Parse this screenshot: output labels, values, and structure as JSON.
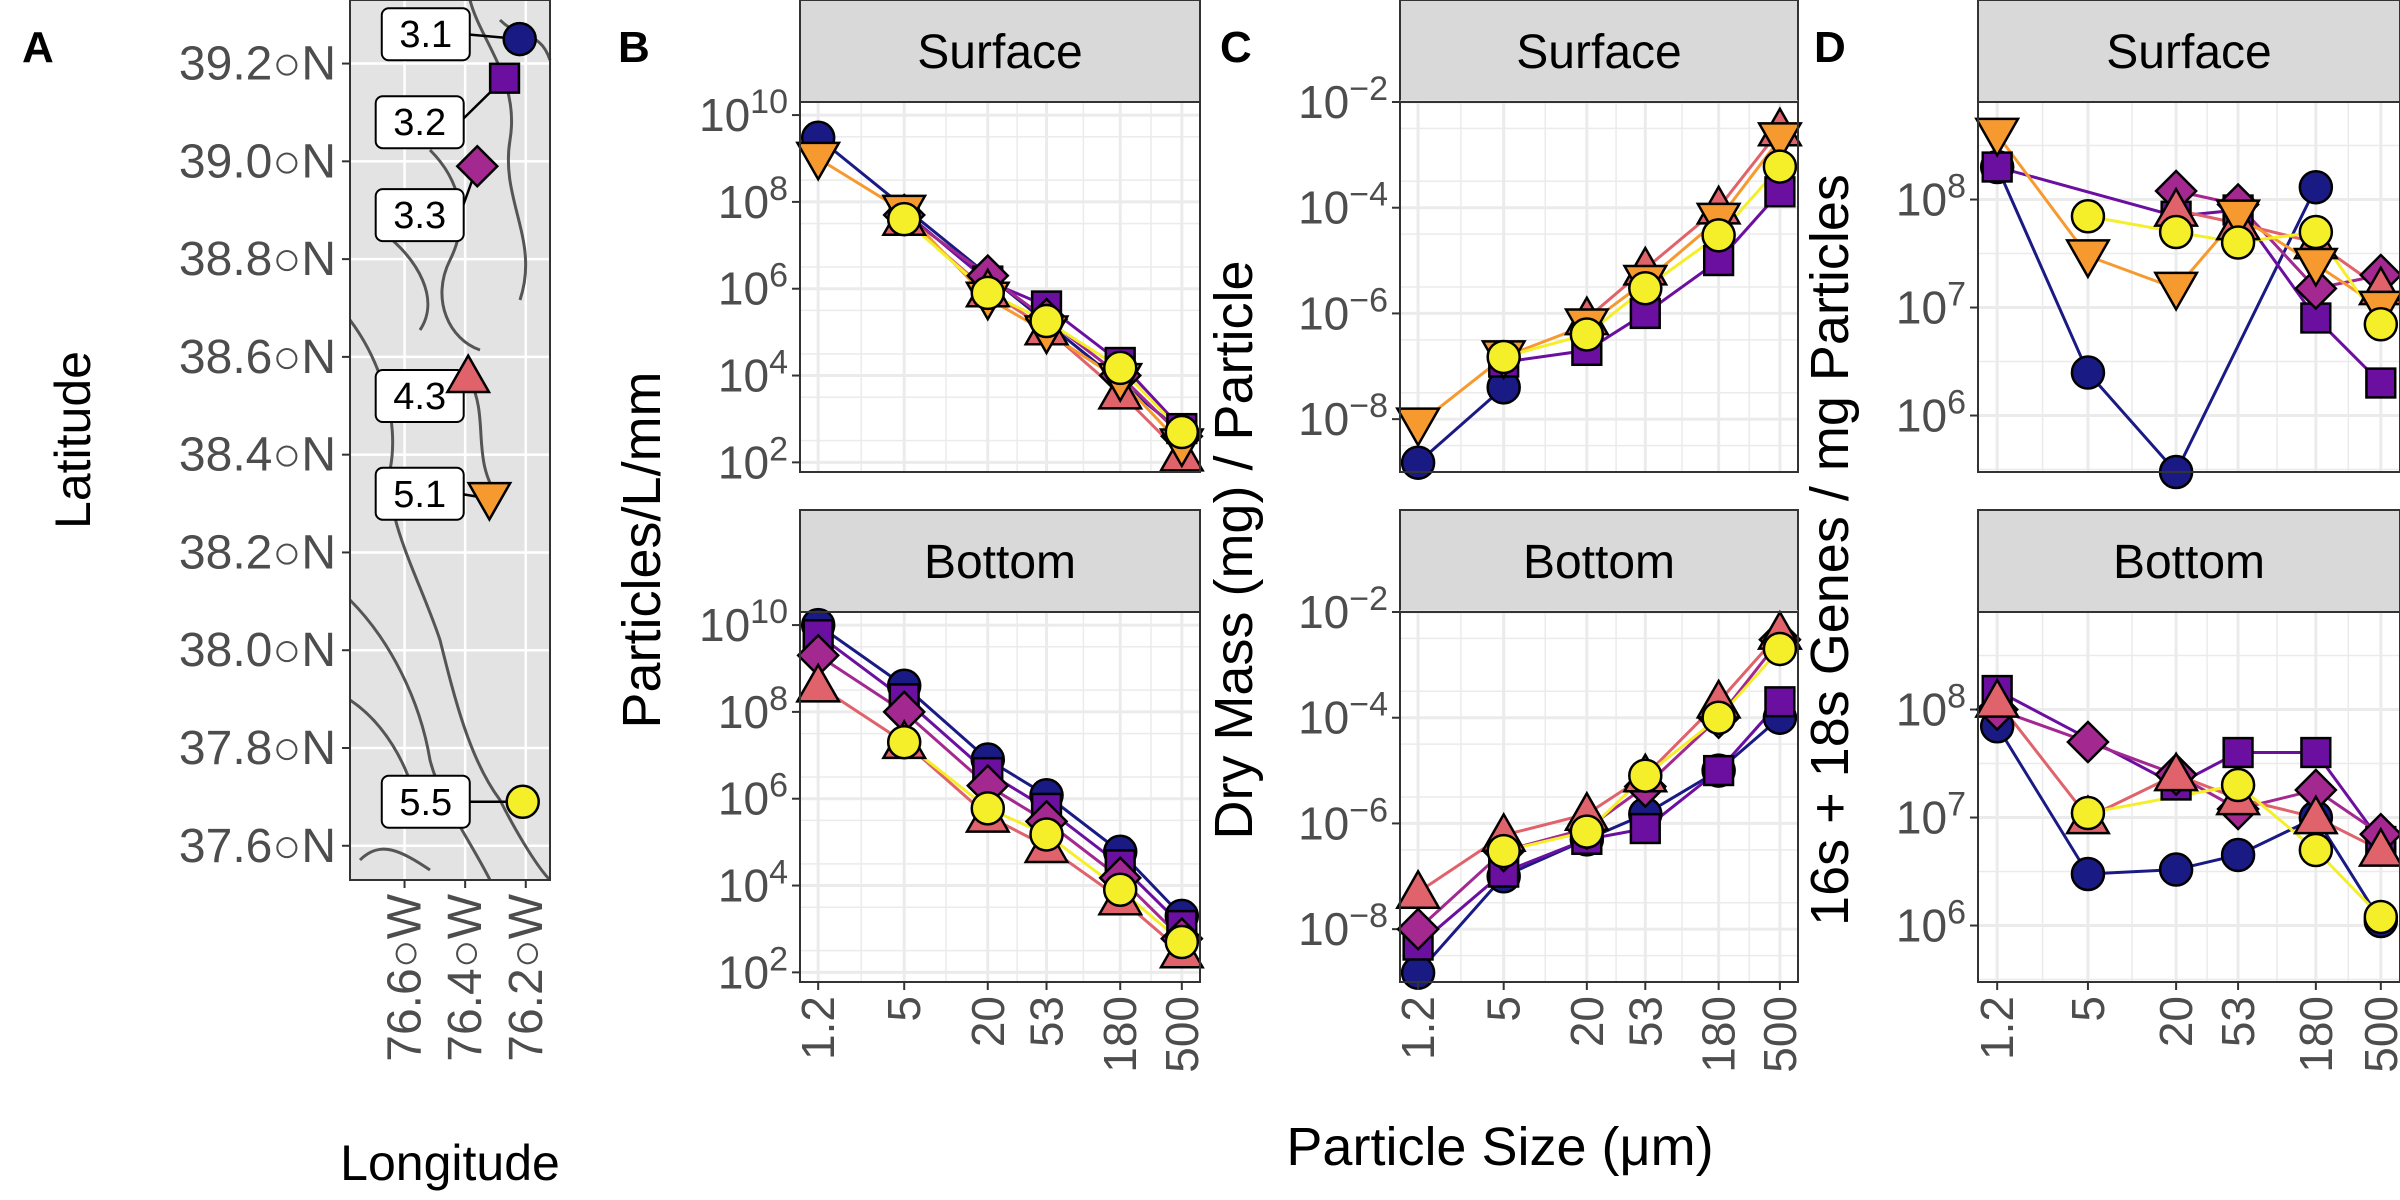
{
  "panel_letters": {
    "a": "A",
    "b": "B",
    "c": "C",
    "d": "D"
  },
  "chart_data": [
    {
      "panel": "A",
      "type": "scatter",
      "subtype": "map",
      "xlabel": "Longitude",
      "ylabel": "Latitude",
      "xlim": [
        -76.78,
        -76.12
      ],
      "ylim": [
        37.53,
        39.33
      ],
      "x_ticks": [
        {
          "value": -76.6,
          "label": "76.6○W"
        },
        {
          "value": -76.4,
          "label": "76.4○W"
        },
        {
          "value": -76.2,
          "label": "76.2○W"
        }
      ],
      "y_ticks": [
        {
          "value": 39.2,
          "label": "39.2○N"
        },
        {
          "value": 39.0,
          "label": "39.0○N"
        },
        {
          "value": 38.8,
          "label": "38.8○N"
        },
        {
          "value": 38.6,
          "label": "38.6○N"
        },
        {
          "value": 38.4,
          "label": "38.4○N"
        },
        {
          "value": 38.2,
          "label": "38.2○N"
        },
        {
          "value": 38.0,
          "label": "38.0○N"
        },
        {
          "value": 37.8,
          "label": "37.8○N"
        },
        {
          "value": 37.6,
          "label": "37.6○N"
        }
      ],
      "background": "#e3e3e3",
      "coast_color": "#555555",
      "stations": [
        {
          "station": "3.1",
          "lon": -76.22,
          "lat": 39.25,
          "label_lon": -76.53,
          "label_lat": 39.26
        },
        {
          "station": "3.2",
          "lon": -76.27,
          "lat": 39.17,
          "label_lon": -76.55,
          "label_lat": 39.08
        },
        {
          "station": "3.3",
          "lon": -76.36,
          "lat": 38.99,
          "label_lon": -76.55,
          "label_lat": 38.89
        },
        {
          "station": "4.3",
          "lon": -76.39,
          "lat": 38.56,
          "label_lon": -76.55,
          "label_lat": 38.52
        },
        {
          "station": "5.1",
          "lon": -76.32,
          "lat": 38.31,
          "label_lon": -76.55,
          "label_lat": 38.32
        },
        {
          "station": "5.5",
          "lon": -76.21,
          "lat": 37.69,
          "label_lon": -76.53,
          "label_lat": 37.69
        }
      ]
    },
    {
      "panel": "B",
      "type": "line",
      "ylabel": "Particles/L/mm",
      "xlabel": "Particle Size (μm)",
      "x_scale": "log",
      "y_scale": "log",
      "x": [
        1.2,
        5,
        20,
        53,
        180,
        500
      ],
      "x_tick_labels": [
        "1.2",
        "5",
        "20",
        "53",
        "180",
        "500"
      ],
      "ylim": [
        60,
        20000000000
      ],
      "y_ticks": [
        100,
        10000,
        1000000,
        100000000,
        10000000000
      ],
      "y_tick_labels": [
        [
          "10",
          "2"
        ],
        [
          "10",
          "4"
        ],
        [
          "10",
          "6"
        ],
        [
          "10",
          "8"
        ],
        [
          "10",
          "10"
        ]
      ],
      "facets": [
        {
          "strip": "Surface",
          "series": [
            {
              "station": "3.1",
              "values": [
                3000000000,
                null,
                null,
                null,
                null,
                500
              ]
            },
            {
              "station": "3.2",
              "values": [
                null,
                60000000,
                1500000,
                400000,
                20000,
                600
              ]
            },
            {
              "station": "3.3",
              "values": [
                null,
                50000000,
                2000000,
                200000,
                10000,
                400
              ]
            },
            {
              "station": "4.3",
              "values": [
                null,
                40000000,
                900000,
                120000,
                4000,
                150
              ]
            },
            {
              "station": "5.1",
              "values": [
                1000000000,
                60000000,
                600000,
                100000,
                8000,
                250
              ]
            },
            {
              "station": "5.5",
              "values": [
                null,
                40000000,
                800000,
                180000,
                15000,
                500
              ]
            }
          ]
        },
        {
          "strip": "Bottom",
          "series": [
            {
              "station": "3.1",
              "values": [
                10000000000,
                400000000,
                8000000,
                1200000,
                60000,
                2000
              ]
            },
            {
              "station": "3.2",
              "values": [
                6000000000,
                200000000,
                4000000,
                600000,
                30000,
                1200
              ]
            },
            {
              "station": "3.3",
              "values": [
                2000000000,
                100000000,
                2000000,
                300000,
                15000,
                600
              ]
            },
            {
              "station": "4.3",
              "values": [
                400000000,
                20000000,
                400000,
                80000,
                5000,
                300
              ]
            },
            {
              "station": "5.1",
              "values": [
                null,
                null,
                null,
                null,
                null,
                null
              ]
            },
            {
              "station": "5.5",
              "values": [
                null,
                20000000,
                600000,
                150000,
                8000,
                500
              ]
            }
          ]
        }
      ]
    },
    {
      "panel": "C",
      "type": "line",
      "ylabel": "Dry Mass (mg) / Particle",
      "xlabel": "Particle Size (μm)",
      "x_scale": "log",
      "y_scale": "log",
      "x": [
        1.2,
        5,
        20,
        53,
        180,
        500
      ],
      "x_tick_labels": [
        "1.2",
        "5",
        "20",
        "53",
        "180",
        "500"
      ],
      "ylim": [
        1e-09,
        0.01
      ],
      "y_ticks": [
        1e-08,
        1e-06,
        0.0001,
        0.01
      ],
      "y_tick_labels": [
        [
          "10",
          "−8"
        ],
        [
          "10",
          "−6"
        ],
        [
          "10",
          "−4"
        ],
        [
          "10",
          "−2"
        ]
      ],
      "facets": [
        {
          "strip": "Surface",
          "series": [
            {
              "station": "3.1",
              "values": [
                1.5e-09,
                4e-08,
                null,
                null,
                null,
                null
              ]
            },
            {
              "station": "3.2",
              "values": [
                null,
                1.2e-07,
                2e-07,
                1e-06,
                1e-05,
                0.0002
              ]
            },
            {
              "station": "3.3",
              "values": [
                null,
                null,
                null,
                null,
                null,
                null
              ]
            },
            {
              "station": "4.3",
              "values": [
                null,
                null,
                8e-07,
                7e-06,
                0.0001,
                0.003
              ]
            },
            {
              "station": "5.1",
              "values": [
                8e-09,
                1.5e-07,
                6e-07,
                4e-06,
                6e-05,
                0.002
              ]
            },
            {
              "station": "5.5",
              "values": [
                null,
                1.5e-07,
                4e-07,
                3e-06,
                3e-05,
                0.0006
              ]
            }
          ]
        },
        {
          "strip": "Bottom",
          "series": [
            {
              "station": "3.1",
              "values": [
                1.5e-09,
                1e-07,
                5e-07,
                1.5e-06,
                1e-05,
                0.0001
              ]
            },
            {
              "station": "3.2",
              "values": [
                5e-09,
                1.2e-07,
                5e-07,
                8e-07,
                1e-05,
                0.0002
              ]
            },
            {
              "station": "3.3",
              "values": [
                1e-08,
                3e-07,
                8e-07,
                5e-06,
                0.0001,
                0.003
              ]
            },
            {
              "station": "4.3",
              "values": [
                5e-08,
                6e-07,
                1.5e-06,
                8e-06,
                0.0002,
                0.004
              ]
            },
            {
              "station": "5.1",
              "values": [
                null,
                null,
                null,
                null,
                null,
                null
              ]
            },
            {
              "station": "5.5",
              "values": [
                null,
                3e-07,
                7e-07,
                8e-06,
                0.0001,
                0.002
              ]
            }
          ]
        }
      ]
    },
    {
      "panel": "D",
      "type": "line",
      "ylabel": "16s + 18s Genes / mg Particles",
      "xlabel": "Particle Size (μm)",
      "x_scale": "log",
      "y_scale": "log",
      "x": [
        1.2,
        5,
        20,
        53,
        180,
        500
      ],
      "x_tick_labels": [
        "1.2",
        "5",
        "20",
        "53",
        "180",
        "500"
      ],
      "ylim": [
        300000,
        800000000
      ],
      "y_ticks": [
        1000000,
        10000000,
        100000000
      ],
      "y_tick_labels": [
        [
          "10",
          "6"
        ],
        [
          "10",
          "7"
        ],
        [
          "10",
          "8"
        ]
      ],
      "facets": [
        {
          "strip": "Surface",
          "series": [
            {
              "station": "3.1",
              "values": [
                200000000,
                2500000,
                300000,
                null,
                130000000,
                null
              ]
            },
            {
              "station": "3.2",
              "values": [
                200000000,
                null,
                70000000,
                80000000,
                8000000,
                2000000
              ]
            },
            {
              "station": "3.3",
              "values": [
                null,
                null,
                120000000,
                90000000,
                15000000,
                20000000
              ]
            },
            {
              "station": "4.3",
              "values": [
                null,
                null,
                80000000,
                60000000,
                40000000,
                15000000
              ]
            },
            {
              "station": "5.1",
              "values": [
                400000000,
                30000000,
                15000000,
                70000000,
                25000000,
                10000000
              ]
            },
            {
              "station": "5.5",
              "values": [
                null,
                70000000,
                50000000,
                40000000,
                50000000,
                7000000
              ]
            }
          ]
        },
        {
          "strip": "Bottom",
          "series": [
            {
              "station": "3.1",
              "values": [
                70000000,
                3000000,
                3300000,
                4500000,
                10000000,
                1100000
              ]
            },
            {
              "station": "3.2",
              "values": [
                150000000,
                null,
                20000000,
                40000000,
                40000000,
                6000000
              ]
            },
            {
              "station": "3.3",
              "values": [
                100000000,
                50000000,
                25000000,
                12000000,
                18000000,
                7000000
              ]
            },
            {
              "station": "4.3",
              "values": [
                120000000,
                10000000,
                25000000,
                15000000,
                10000000,
                5000000
              ]
            },
            {
              "station": "5.1",
              "values": [
                null,
                null,
                null,
                null,
                null,
                null
              ]
            },
            {
              "station": "5.5",
              "values": [
                null,
                11000000,
                null,
                20000000,
                5000000,
                1200000
              ]
            }
          ]
        }
      ]
    }
  ],
  "station_styles": [
    {
      "station": "3.1",
      "color": "#1a1a84",
      "shape": "circle"
    },
    {
      "station": "3.2",
      "color": "#6b0fa0",
      "shape": "square"
    },
    {
      "station": "3.3",
      "color": "#a3288f",
      "shape": "diamond"
    },
    {
      "station": "4.3",
      "color": "#e0626b",
      "shape": "triangle-up"
    },
    {
      "station": "5.1",
      "color": "#f69a30",
      "shape": "triangle-down"
    },
    {
      "station": "5.5",
      "color": "#f5ef2a",
      "shape": "circle"
    }
  ],
  "shared_xlabel": "Particle Size (μm)",
  "colors": {
    "strip_fill": "#d9d9d9",
    "grid": "#ebebeb",
    "panel_border": "#333333",
    "axis_text": "#4d4d4d"
  }
}
